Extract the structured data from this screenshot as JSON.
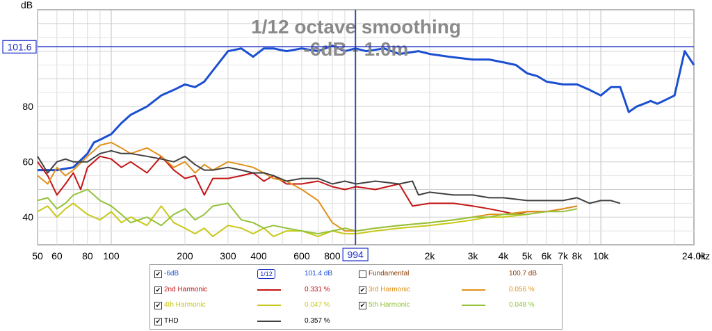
{
  "chart_data": {
    "type": "line",
    "title": "1/12 octave smoothing",
    "subtitle": "-6dB - 1.0m",
    "ylabel": "dB",
    "xlabel": "Hz",
    "xscale": "log",
    "xlim": [
      50,
      24000
    ],
    "ylim": [
      30,
      115
    ],
    "y_ticks": [
      40,
      60,
      80
    ],
    "x_ticks": [
      {
        "value": 50,
        "label": "50"
      },
      {
        "value": 60,
        "label": "60"
      },
      {
        "value": 80,
        "label": "80"
      },
      {
        "value": 100,
        "label": "100"
      },
      {
        "value": 200,
        "label": "200"
      },
      {
        "value": 300,
        "label": "300"
      },
      {
        "value": 400,
        "label": "400"
      },
      {
        "value": 600,
        "label": "600"
      },
      {
        "value": 800,
        "label": "800"
      },
      {
        "value": 2000,
        "label": "2k"
      },
      {
        "value": 3000,
        "label": "3k"
      },
      {
        "value": 4000,
        "label": "4k"
      },
      {
        "value": 5000,
        "label": "5k"
      },
      {
        "value": 6000,
        "label": "6k"
      },
      {
        "value": 7000,
        "label": "7k"
      },
      {
        "value": 8000,
        "label": "8k"
      },
      {
        "value": 10000,
        "label": "10k"
      },
      {
        "value": 24000,
        "label": "24.0k"
      }
    ],
    "cursor": {
      "x": 994,
      "x_label": "994",
      "y": 101.6,
      "y_label": "101.6"
    },
    "series": [
      {
        "name": "-6dB",
        "color": "#1b4fd1",
        "width": 3,
        "x": [
          50,
          60,
          70,
          80,
          85,
          90,
          100,
          110,
          120,
          140,
          160,
          180,
          200,
          220,
          240,
          260,
          300,
          340,
          380,
          420,
          460,
          520,
          600,
          700,
          800,
          900,
          994,
          1100,
          1300,
          1500,
          1800,
          2000,
          2400,
          3000,
          3500,
          4000,
          4500,
          5000,
          5500,
          6000,
          7000,
          8000,
          9000,
          10000,
          11000,
          12000,
          13000,
          14000,
          15000,
          16000,
          17000,
          18000,
          20000,
          22000,
          24000
        ],
        "y": [
          57,
          57,
          58,
          63,
          67,
          68,
          70,
          74,
          77,
          80,
          84,
          86,
          88,
          87,
          89,
          93,
          100,
          101,
          98,
          101,
          101,
          100,
          101,
          100,
          102,
          100,
          101,
          100,
          101,
          99,
          100,
          99,
          98,
          97,
          97,
          96,
          95,
          92,
          91,
          89,
          88,
          88,
          86,
          84,
          87,
          87,
          78,
          80,
          81,
          82,
          81,
          82,
          84,
          100,
          95
        ]
      },
      {
        "name": "2nd Harmonic",
        "color": "#c41414",
        "width": 2,
        "x": [
          50,
          55,
          60,
          65,
          70,
          75,
          80,
          90,
          100,
          110,
          120,
          140,
          160,
          180,
          200,
          220,
          240,
          260,
          300,
          340,
          380,
          420,
          460,
          520,
          600,
          700,
          800,
          900,
          1000,
          1200,
          1500,
          1700,
          2000,
          2500,
          3000,
          3500,
          4000,
          4500,
          5000,
          6000,
          7000,
          8000
        ],
        "y": [
          60,
          55,
          48,
          52,
          56,
          50,
          58,
          62,
          61,
          58,
          60,
          56,
          62,
          57,
          54,
          55,
          48,
          54,
          54,
          55,
          56,
          53,
          55,
          52,
          52,
          53,
          51,
          50,
          51,
          50,
          52,
          44,
          45,
          45,
          44,
          43,
          42,
          41,
          42,
          42,
          43,
          44
        ]
      },
      {
        "name": "3rd Harmonic",
        "color": "#e0901a",
        "width": 2,
        "x": [
          50,
          55,
          60,
          65,
          70,
          80,
          90,
          100,
          110,
          120,
          140,
          160,
          180,
          200,
          220,
          240,
          260,
          300,
          340,
          380,
          420,
          460,
          520,
          600,
          700,
          800,
          900,
          1000,
          1200,
          1500,
          2000,
          2500,
          3000,
          3500,
          4000,
          5000,
          6000,
          7000,
          8000
        ],
        "y": [
          55,
          52,
          58,
          55,
          57,
          62,
          66,
          67,
          65,
          63,
          65,
          62,
          58,
          60,
          56,
          59,
          57,
          60,
          59,
          58,
          56,
          54,
          53,
          50,
          46,
          38,
          35,
          35,
          36,
          37,
          38,
          39,
          40,
          41,
          41,
          42,
          42,
          43,
          44
        ]
      },
      {
        "name": "4th Harmonic",
        "color": "#c8c818",
        "width": 2,
        "x": [
          50,
          55,
          60,
          65,
          70,
          80,
          90,
          100,
          110,
          120,
          140,
          160,
          180,
          200,
          220,
          240,
          260,
          300,
          340,
          380,
          420,
          460,
          520,
          600,
          700,
          800,
          900,
          1000,
          1200,
          1500,
          2000,
          2500,
          3000,
          3500,
          4000,
          5000
        ],
        "y": [
          42,
          44,
          40,
          43,
          45,
          41,
          39,
          42,
          38,
          40,
          37,
          44,
          38,
          36,
          34,
          36,
          33,
          37,
          36,
          34,
          36,
          33,
          35,
          35,
          33,
          35,
          34,
          34,
          35,
          36,
          37,
          38,
          39,
          40,
          40,
          41
        ]
      },
      {
        "name": "5th Harmonic",
        "color": "#94c23a",
        "width": 2,
        "x": [
          50,
          55,
          60,
          65,
          70,
          80,
          90,
          100,
          110,
          120,
          140,
          160,
          180,
          200,
          220,
          240,
          260,
          300,
          340,
          380,
          420,
          460,
          520,
          600,
          700,
          800,
          900,
          1000,
          1200,
          1500,
          2000,
          2500,
          3000,
          3500,
          4000,
          5000,
          6000,
          7000,
          8000
        ],
        "y": [
          46,
          47,
          43,
          45,
          48,
          50,
          46,
          44,
          41,
          38,
          40,
          37,
          41,
          43,
          39,
          41,
          44,
          45,
          39,
          38,
          36,
          37,
          36,
          35,
          34,
          35,
          36,
          35,
          36,
          37,
          38,
          39,
          40,
          40,
          41,
          41,
          42,
          42,
          43
        ]
      },
      {
        "name": "THD",
        "color": "#404040",
        "width": 2,
        "x": [
          50,
          55,
          60,
          65,
          70,
          80,
          90,
          100,
          110,
          120,
          140,
          160,
          180,
          200,
          220,
          240,
          260,
          300,
          340,
          380,
          420,
          460,
          520,
          600,
          700,
          800,
          900,
          1000,
          1200,
          1500,
          1700,
          1800,
          2000,
          2500,
          3000,
          3500,
          4000,
          5000,
          6000,
          7000,
          8000,
          9000,
          10000,
          11000,
          12000
        ],
        "y": [
          62,
          56,
          60,
          61,
          60,
          60,
          63,
          64,
          63,
          63,
          62,
          61,
          60,
          62,
          59,
          57,
          57,
          58,
          57,
          56,
          56,
          55,
          53,
          54,
          54,
          52,
          53,
          52,
          53,
          52,
          53,
          48,
          49,
          48,
          48,
          47,
          47,
          46,
          46,
          46,
          47,
          45,
          46,
          46,
          45
        ]
      }
    ]
  },
  "legend": {
    "rows": [
      [
        {
          "checked": true,
          "check_glyph": "✔",
          "name": "-6dB",
          "value": "101.4 dB",
          "color": "#1b4fd1",
          "special": "smooth",
          "smooth_label": "1/12"
        },
        {
          "checked": false,
          "check_glyph": "",
          "name": "Fundamental",
          "value": "100.7 dB",
          "color": "#8b3a00",
          "special": "none"
        }
      ],
      [
        {
          "checked": true,
          "check_glyph": "✔",
          "name": "2nd Harmonic",
          "value": "0.331 %",
          "color": "#c41414"
        },
        {
          "checked": true,
          "check_glyph": "✔",
          "name": "3rd Harmonic",
          "value": "0.056 %",
          "color": "#e0901a"
        }
      ],
      [
        {
          "checked": true,
          "check_glyph": "✔",
          "name": "4th Harmonic",
          "value": "0.047 %",
          "color": "#c8c818"
        },
        {
          "checked": true,
          "check_glyph": "✔",
          "name": "5th Harmonic",
          "value": "0.048 %",
          "color": "#94c23a"
        }
      ],
      [
        {
          "checked": true,
          "check_glyph": "✔",
          "name": "THD",
          "value": "0.357 %",
          "color": "#404040"
        }
      ]
    ]
  }
}
